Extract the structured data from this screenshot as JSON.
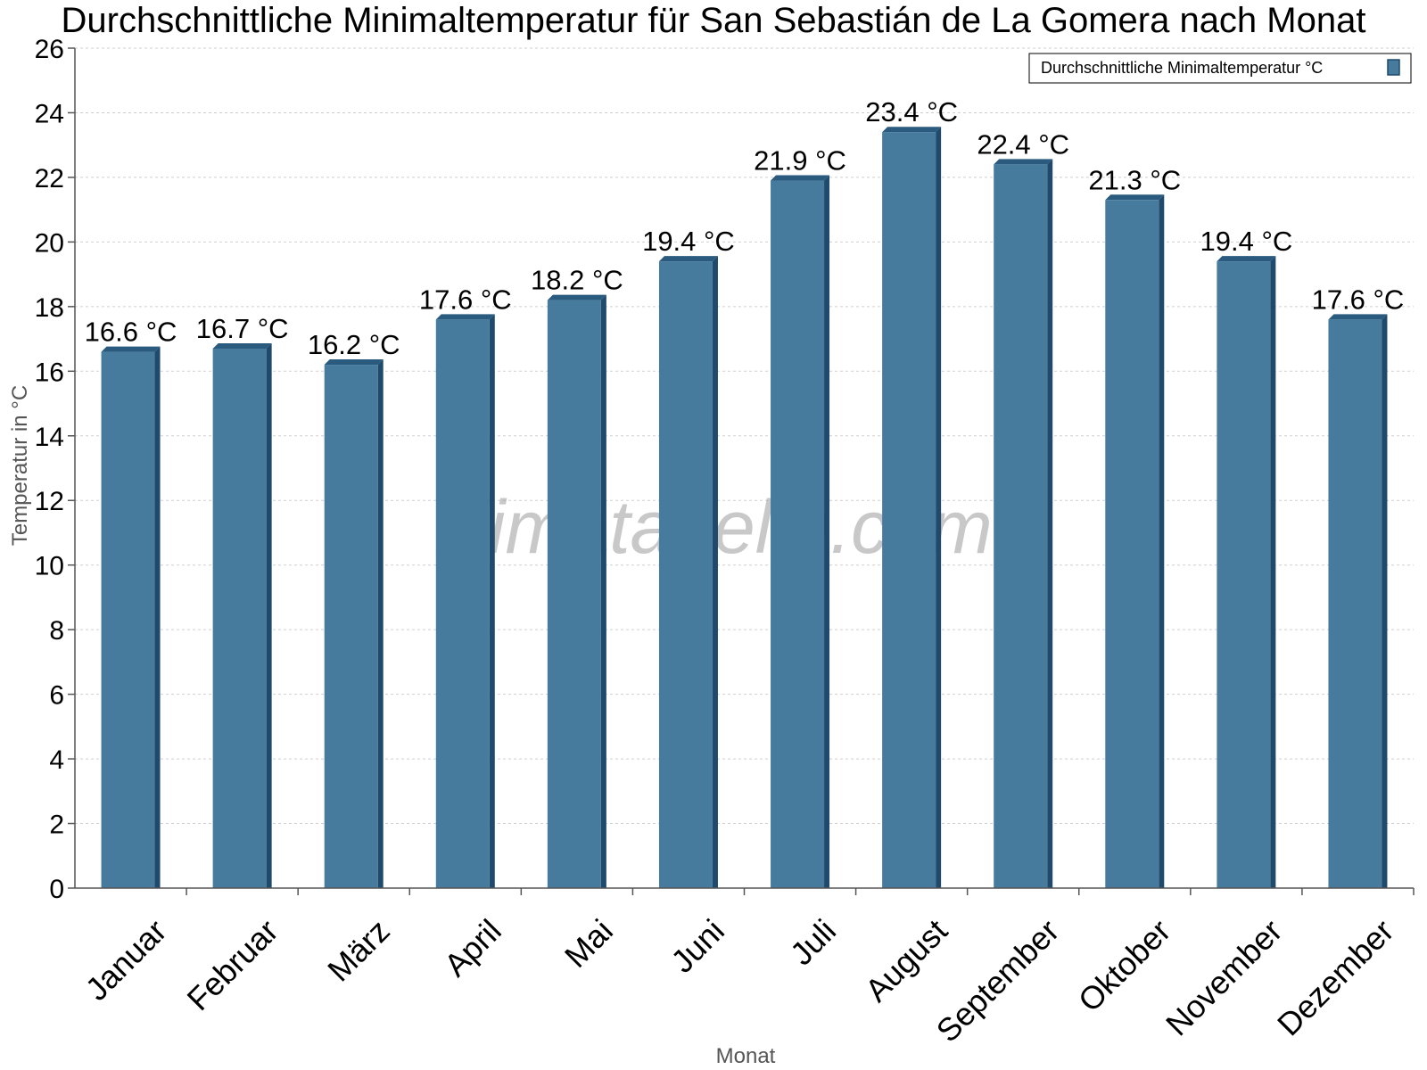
{
  "chart_data": {
    "type": "bar",
    "title": "Durchschnittliche Minimaltemperatur für San Sebastián de La Gomera nach Monat",
    "xlabel": "Monat",
    "ylabel": "Temperatur in °C",
    "ylim": [
      0,
      26
    ],
    "y_ticks": [
      0,
      2,
      4,
      6,
      8,
      10,
      12,
      14,
      16,
      18,
      20,
      22,
      24,
      26
    ],
    "grid": true,
    "legend_position": "top-right",
    "categories": [
      "Januar",
      "Februar",
      "März",
      "April",
      "Mai",
      "Juni",
      "Juli",
      "August",
      "September",
      "Oktober",
      "November",
      "Dezember"
    ],
    "series": [
      {
        "name": "Durchschnittliche Minimaltemperatur °C",
        "color": "#467b9e",
        "values": [
          16.6,
          16.7,
          16.2,
          17.6,
          18.2,
          19.4,
          21.9,
          23.4,
          22.4,
          21.3,
          19.4,
          17.6
        ],
        "labels": [
          "16.6 °C",
          "16.7 °C",
          "16.2 °C",
          "17.6 °C",
          "18.2 °C",
          "19.4 °C",
          "21.9 °C",
          "23.4 °C",
          "22.4 °C",
          "21.3 °C",
          "19.4 °C",
          "17.6 °C"
        ]
      }
    ]
  },
  "watermark": "klimatabelle.com",
  "colors": {
    "bar_front": "#467b9e",
    "bar_side": "#1f4a6b",
    "bar_top": "#2a5a7e"
  }
}
